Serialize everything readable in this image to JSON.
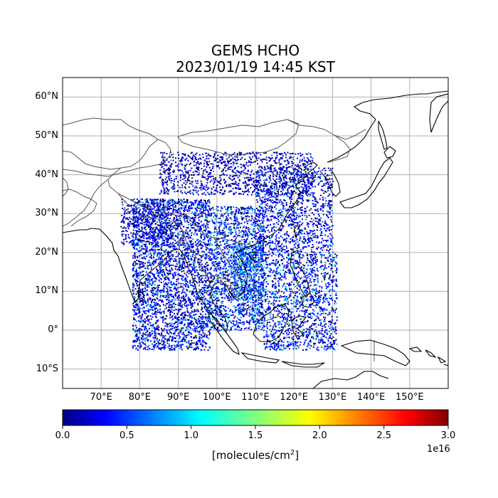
{
  "title": {
    "line1": "GEMS HCHO",
    "line2": "2023/01/19 14:45 KST"
  },
  "map": {
    "lon_range": [
      60,
      160
    ],
    "lat_range": [
      -15,
      65
    ],
    "lon_ticks": [
      {
        "value": 70,
        "label": "70°E"
      },
      {
        "value": 80,
        "label": "80°E"
      },
      {
        "value": 90,
        "label": "90°E"
      },
      {
        "value": 100,
        "label": "100°E"
      },
      {
        "value": 110,
        "label": "110°E"
      },
      {
        "value": 120,
        "label": "120°E"
      },
      {
        "value": 130,
        "label": "130°E"
      },
      {
        "value": 140,
        "label": "140°E"
      },
      {
        "value": 150,
        "label": "150°E"
      }
    ],
    "lat_ticks": [
      {
        "value": 60,
        "label": "60°N"
      },
      {
        "value": 50,
        "label": "50°N"
      },
      {
        "value": 40,
        "label": "40°N"
      },
      {
        "value": 30,
        "label": "30°N"
      },
      {
        "value": 20,
        "label": "20°N"
      },
      {
        "value": 10,
        "label": "10°N"
      },
      {
        "value": 0,
        "label": "0°"
      },
      {
        "value": -10,
        "label": "10°S"
      }
    ],
    "grid": true
  },
  "colorbar": {
    "ticks": [
      "0.0",
      "0.5",
      "1.0",
      "1.5",
      "2.0",
      "2.5",
      "3.0"
    ],
    "range": [
      0,
      3
    ],
    "exponent": "1e16",
    "label": "[molecules/cm",
    "label_sup": "2",
    "label_close": "]",
    "colormap": "jet",
    "colors": [
      "#00007f",
      "#0000ff",
      "#0080ff",
      "#00ffff",
      "#80ff80",
      "#ffff00",
      "#ff8000",
      "#ff0000",
      "#7f0000"
    ]
  }
}
